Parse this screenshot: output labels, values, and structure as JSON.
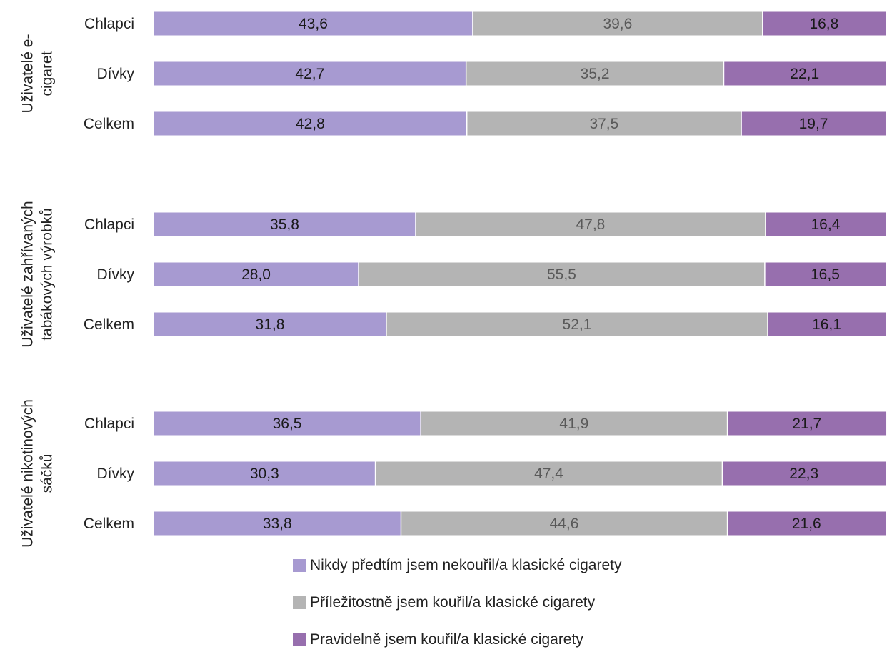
{
  "chart_data": {
    "type": "bar",
    "orientation": "horizontal",
    "stacked": "percent",
    "xlim": [
      0,
      100
    ],
    "groups": [
      {
        "label": "Uživatelé e-cigaret",
        "label_lines": [
          "Uživatelé e-",
          "cigaret"
        ],
        "rows": [
          {
            "label": "Chlapci",
            "values": [
              43.6,
              39.6,
              16.8
            ],
            "display": [
              "43,6",
              "39,6",
              "16,8"
            ]
          },
          {
            "label": "Dívky",
            "values": [
              42.7,
              35.2,
              22.1
            ],
            "display": [
              "42,7",
              "35,2",
              "22,1"
            ]
          },
          {
            "label": "Celkem",
            "values": [
              42.8,
              37.5,
              19.7
            ],
            "display": [
              "42,8",
              "37,5",
              "19,7"
            ]
          }
        ]
      },
      {
        "label": "Uživatelé zahřívaných tabákových výrobků",
        "label_lines": [
          "Uživatelé zahřívaných",
          "tabákových výrobků"
        ],
        "rows": [
          {
            "label": "Chlapci",
            "values": [
              35.8,
              47.8,
              16.4
            ],
            "display": [
              "35,8",
              "47,8",
              "16,4"
            ]
          },
          {
            "label": "Dívky",
            "values": [
              28.0,
              55.5,
              16.5
            ],
            "display": [
              "28,0",
              "55,5",
              "16,5"
            ]
          },
          {
            "label": "Celkem",
            "values": [
              31.8,
              52.1,
              16.1
            ],
            "display": [
              "31,8",
              "52,1",
              "16,1"
            ]
          }
        ]
      },
      {
        "label": "Uživatelé nikotinových sáčků",
        "label_lines": [
          "Uživatelé nikotinových",
          "sáčků"
        ],
        "rows": [
          {
            "label": "Chlapci",
            "values": [
              36.5,
              41.9,
              21.7
            ],
            "display": [
              "36,5",
              "41,9",
              "21,7"
            ]
          },
          {
            "label": "Dívky",
            "values": [
              30.3,
              47.4,
              22.3
            ],
            "display": [
              "30,3",
              "47,4",
              "22,3"
            ]
          },
          {
            "label": "Celkem",
            "values": [
              33.8,
              44.6,
              21.6
            ],
            "display": [
              "33,8",
              "44,6",
              "21,6"
            ]
          }
        ]
      }
    ],
    "series": [
      {
        "name": "Nikdy předtím jsem nekouřil/a klasické cigarety",
        "color": "#a79ad1",
        "label_color": "#1a1a1a"
      },
      {
        "name": "Příležitostně jsem kouřil/a klasické cigarety",
        "color": "#b4b4b4",
        "label_color": "#595959"
      },
      {
        "name": "Pravidelně jsem kouřil/a klasické cigarety",
        "color": "#976fae",
        "label_color": "#1a1a1a"
      }
    ],
    "legend_position": "bottom",
    "grid": false
  }
}
